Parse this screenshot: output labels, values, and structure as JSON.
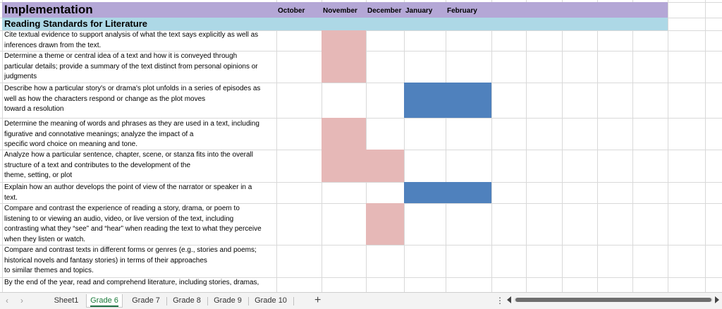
{
  "sheet": {
    "title": "Implementation",
    "section": "Reading Standards for Literature",
    "months": [
      "October",
      "November",
      "December",
      "January",
      "February"
    ],
    "standards": [
      {
        "lines": [
          "Cite textual evidence to support analysis of what the text says explicitly as well as",
          "inferences drawn from the text."
        ]
      },
      {
        "lines": [
          "Determine a theme or central idea of a text and how it is conveyed through",
          "particular details; provide a summary of the text distinct from personal opinions or",
          "judgments"
        ]
      },
      {
        "lines": [
          "Describe how a particular story's or drama's plot unfolds in a series of episodes as",
          "well as how the characters respond or change as the plot moves",
          "toward a resolution"
        ]
      },
      {
        "lines": [
          "Determine the meaning of words and phrases as they are used in a text, including",
          "figurative and connotative meanings; analyze the impact of a",
          "specific word choice on meaning and tone."
        ]
      },
      {
        "lines": [
          "Analyze how a particular sentence, chapter, scene, or stanza fits into the overall",
          "structure of a text and contributes to the development of the",
          "theme, setting, or plot"
        ]
      },
      {
        "lines": [
          "Explain how an author develops the point of view of the narrator or speaker in a",
          "text."
        ]
      },
      {
        "lines": [
          "Compare and contrast the experience of reading a story, drama, or poem to",
          "listening to or viewing an audio, video, or live version of the text, including",
          "contrasting what they “see” and “hear” when reading the text to what they perceive",
          "when they listen or watch."
        ]
      },
      {
        "lines": [
          "Compare and contrast texts in different forms or genres (e.g., stories and poems;",
          "historical novels and fantasy stories) in terms of their approaches",
          "to similar themes and topics."
        ]
      },
      {
        "lines": [
          "By the end of the year, read and comprehend literature, including stories, dramas,"
        ]
      }
    ],
    "colors": {
      "pink": "#e6b8b7",
      "blue": "#4f81bd",
      "title_band": "#b4a7d6",
      "section_band": "#add8e6"
    }
  },
  "tabs": {
    "items": [
      "Sheet1",
      "Grade 6",
      "Grade 7",
      "Grade 8",
      "Grade 9",
      "Grade 10"
    ],
    "active": "Grade 6",
    "add_label": "+",
    "more_label": "⋮",
    "prev_label": "‹",
    "next_label": "›"
  }
}
